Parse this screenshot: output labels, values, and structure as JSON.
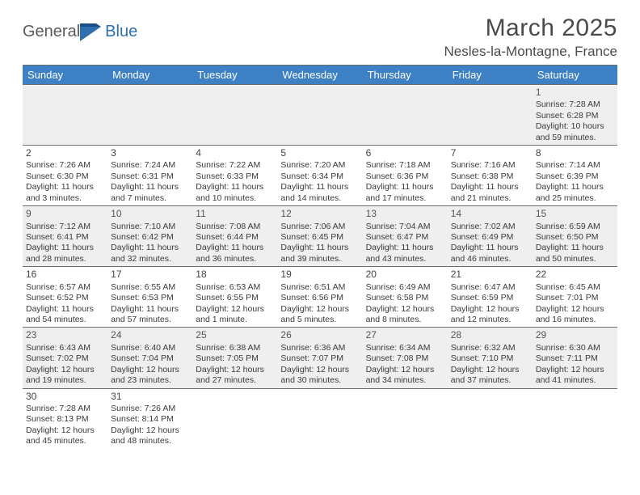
{
  "logo": {
    "general": "General",
    "blue": "Blue"
  },
  "title": {
    "month": "March 2025",
    "location": "Nesles-la-Montagne, France"
  },
  "colors": {
    "header_bg": "#3d80c3",
    "header_text": "#ffffff",
    "alt_row_bg": "#efefef",
    "cell_border": "#6e6e6e",
    "body_text": "#3a3a3a"
  },
  "weekdays": [
    "Sunday",
    "Monday",
    "Tuesday",
    "Wednesday",
    "Thursday",
    "Friday",
    "Saturday"
  ],
  "days": {
    "1": {
      "sunrise": "Sunrise: 7:28 AM",
      "sunset": "Sunset: 6:28 PM",
      "daylight1": "Daylight: 10 hours",
      "daylight2": "and 59 minutes."
    },
    "2": {
      "sunrise": "Sunrise: 7:26 AM",
      "sunset": "Sunset: 6:30 PM",
      "daylight1": "Daylight: 11 hours",
      "daylight2": "and 3 minutes."
    },
    "3": {
      "sunrise": "Sunrise: 7:24 AM",
      "sunset": "Sunset: 6:31 PM",
      "daylight1": "Daylight: 11 hours",
      "daylight2": "and 7 minutes."
    },
    "4": {
      "sunrise": "Sunrise: 7:22 AM",
      "sunset": "Sunset: 6:33 PM",
      "daylight1": "Daylight: 11 hours",
      "daylight2": "and 10 minutes."
    },
    "5": {
      "sunrise": "Sunrise: 7:20 AM",
      "sunset": "Sunset: 6:34 PM",
      "daylight1": "Daylight: 11 hours",
      "daylight2": "and 14 minutes."
    },
    "6": {
      "sunrise": "Sunrise: 7:18 AM",
      "sunset": "Sunset: 6:36 PM",
      "daylight1": "Daylight: 11 hours",
      "daylight2": "and 17 minutes."
    },
    "7": {
      "sunrise": "Sunrise: 7:16 AM",
      "sunset": "Sunset: 6:38 PM",
      "daylight1": "Daylight: 11 hours",
      "daylight2": "and 21 minutes."
    },
    "8": {
      "sunrise": "Sunrise: 7:14 AM",
      "sunset": "Sunset: 6:39 PM",
      "daylight1": "Daylight: 11 hours",
      "daylight2": "and 25 minutes."
    },
    "9": {
      "sunrise": "Sunrise: 7:12 AM",
      "sunset": "Sunset: 6:41 PM",
      "daylight1": "Daylight: 11 hours",
      "daylight2": "and 28 minutes."
    },
    "10": {
      "sunrise": "Sunrise: 7:10 AM",
      "sunset": "Sunset: 6:42 PM",
      "daylight1": "Daylight: 11 hours",
      "daylight2": "and 32 minutes."
    },
    "11": {
      "sunrise": "Sunrise: 7:08 AM",
      "sunset": "Sunset: 6:44 PM",
      "daylight1": "Daylight: 11 hours",
      "daylight2": "and 36 minutes."
    },
    "12": {
      "sunrise": "Sunrise: 7:06 AM",
      "sunset": "Sunset: 6:45 PM",
      "daylight1": "Daylight: 11 hours",
      "daylight2": "and 39 minutes."
    },
    "13": {
      "sunrise": "Sunrise: 7:04 AM",
      "sunset": "Sunset: 6:47 PM",
      "daylight1": "Daylight: 11 hours",
      "daylight2": "and 43 minutes."
    },
    "14": {
      "sunrise": "Sunrise: 7:02 AM",
      "sunset": "Sunset: 6:49 PM",
      "daylight1": "Daylight: 11 hours",
      "daylight2": "and 46 minutes."
    },
    "15": {
      "sunrise": "Sunrise: 6:59 AM",
      "sunset": "Sunset: 6:50 PM",
      "daylight1": "Daylight: 11 hours",
      "daylight2": "and 50 minutes."
    },
    "16": {
      "sunrise": "Sunrise: 6:57 AM",
      "sunset": "Sunset: 6:52 PM",
      "daylight1": "Daylight: 11 hours",
      "daylight2": "and 54 minutes."
    },
    "17": {
      "sunrise": "Sunrise: 6:55 AM",
      "sunset": "Sunset: 6:53 PM",
      "daylight1": "Daylight: 11 hours",
      "daylight2": "and 57 minutes."
    },
    "18": {
      "sunrise": "Sunrise: 6:53 AM",
      "sunset": "Sunset: 6:55 PM",
      "daylight1": "Daylight: 12 hours",
      "daylight2": "and 1 minute."
    },
    "19": {
      "sunrise": "Sunrise: 6:51 AM",
      "sunset": "Sunset: 6:56 PM",
      "daylight1": "Daylight: 12 hours",
      "daylight2": "and 5 minutes."
    },
    "20": {
      "sunrise": "Sunrise: 6:49 AM",
      "sunset": "Sunset: 6:58 PM",
      "daylight1": "Daylight: 12 hours",
      "daylight2": "and 8 minutes."
    },
    "21": {
      "sunrise": "Sunrise: 6:47 AM",
      "sunset": "Sunset: 6:59 PM",
      "daylight1": "Daylight: 12 hours",
      "daylight2": "and 12 minutes."
    },
    "22": {
      "sunrise": "Sunrise: 6:45 AM",
      "sunset": "Sunset: 7:01 PM",
      "daylight1": "Daylight: 12 hours",
      "daylight2": "and 16 minutes."
    },
    "23": {
      "sunrise": "Sunrise: 6:43 AM",
      "sunset": "Sunset: 7:02 PM",
      "daylight1": "Daylight: 12 hours",
      "daylight2": "and 19 minutes."
    },
    "24": {
      "sunrise": "Sunrise: 6:40 AM",
      "sunset": "Sunset: 7:04 PM",
      "daylight1": "Daylight: 12 hours",
      "daylight2": "and 23 minutes."
    },
    "25": {
      "sunrise": "Sunrise: 6:38 AM",
      "sunset": "Sunset: 7:05 PM",
      "daylight1": "Daylight: 12 hours",
      "daylight2": "and 27 minutes."
    },
    "26": {
      "sunrise": "Sunrise: 6:36 AM",
      "sunset": "Sunset: 7:07 PM",
      "daylight1": "Daylight: 12 hours",
      "daylight2": "and 30 minutes."
    },
    "27": {
      "sunrise": "Sunrise: 6:34 AM",
      "sunset": "Sunset: 7:08 PM",
      "daylight1": "Daylight: 12 hours",
      "daylight2": "and 34 minutes."
    },
    "28": {
      "sunrise": "Sunrise: 6:32 AM",
      "sunset": "Sunset: 7:10 PM",
      "daylight1": "Daylight: 12 hours",
      "daylight2": "and 37 minutes."
    },
    "29": {
      "sunrise": "Sunrise: 6:30 AM",
      "sunset": "Sunset: 7:11 PM",
      "daylight1": "Daylight: 12 hours",
      "daylight2": "and 41 minutes."
    },
    "30": {
      "sunrise": "Sunrise: 7:28 AM",
      "sunset": "Sunset: 8:13 PM",
      "daylight1": "Daylight: 12 hours",
      "daylight2": "and 45 minutes."
    },
    "31": {
      "sunrise": "Sunrise: 7:26 AM",
      "sunset": "Sunset: 8:14 PM",
      "daylight1": "Daylight: 12 hours",
      "daylight2": "and 48 minutes."
    }
  },
  "layout": {
    "first_weekday_index": 6,
    "num_days": 31,
    "alt_row_indices": [
      0,
      2,
      4
    ]
  }
}
